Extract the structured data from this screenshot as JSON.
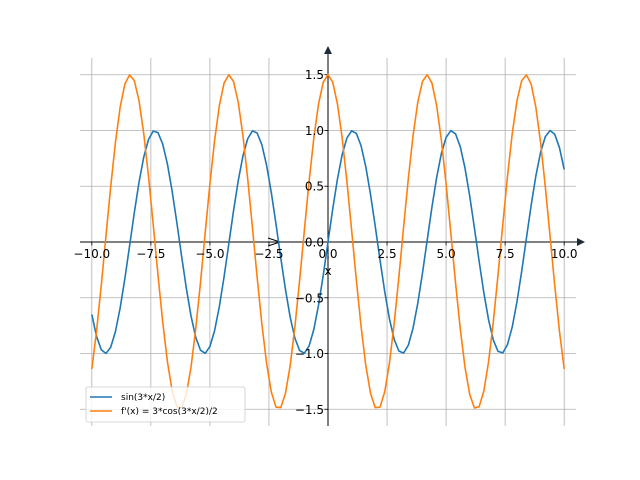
{
  "chart_data": {
    "type": "line",
    "title": "",
    "xlabel": "x",
    "ylabel": "",
    "xlim": [
      -10.5,
      10.5
    ],
    "ylim": [
      -1.65,
      1.65
    ],
    "grid": true,
    "legend_position": "lower-left",
    "x_ticks": [
      -10.0,
      -7.5,
      -5.0,
      -2.5,
      0.0,
      2.5,
      5.0,
      7.5,
      10.0
    ],
    "x_tick_labels": [
      "−10.0",
      "−7.5",
      "−5.0",
      "−2.5",
      "0.0",
      "2.5",
      "5.0",
      "7.5",
      "10.0"
    ],
    "y_ticks": [
      -1.5,
      -1.0,
      -0.5,
      0.0,
      0.5,
      1.0,
      1.5
    ],
    "y_tick_labels": [
      "−1.5",
      "−1.0",
      "−0.5",
      "0.0",
      "0.5",
      "1.0",
      "1.5"
    ],
    "x_domain": [
      -10,
      10
    ],
    "sample_count": 101,
    "series": [
      {
        "name": "sin(3*x/2)",
        "expression": "sin(1.5*x)",
        "color": "#1f77b4"
      },
      {
        "name": "f'(x) = 3*cos(3*x/2)/2",
        "expression": "1.5*cos(1.5*x)",
        "color": "#ff7f0e"
      }
    ],
    "grid_color": "#b0b0b0",
    "axis_color": "#000000",
    "arrow_color": "#1c2a3a"
  }
}
